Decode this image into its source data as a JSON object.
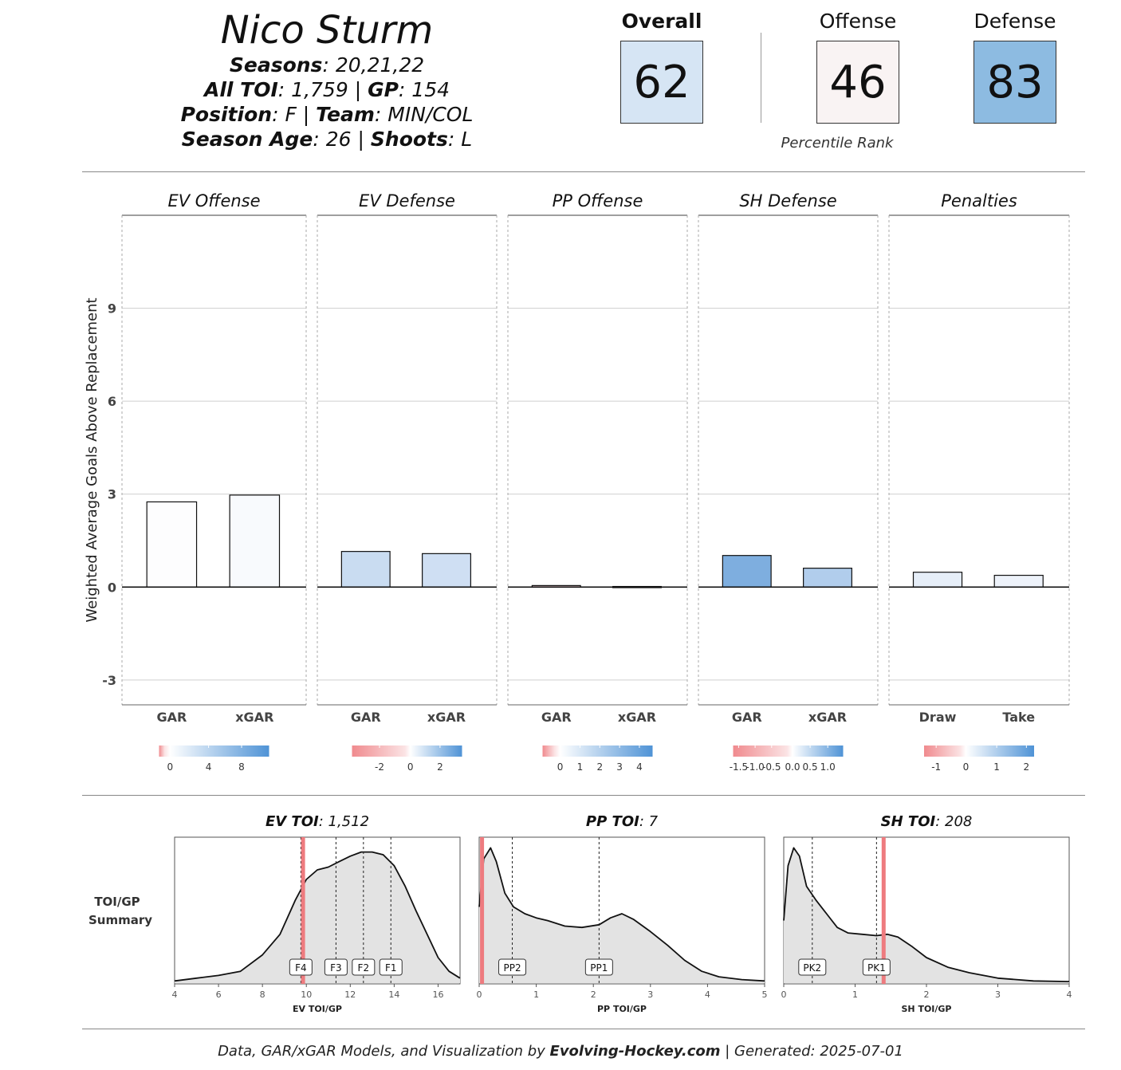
{
  "player": {
    "name": "Nico Sturm",
    "seasons_label": "Seasons",
    "seasons": "20,21,22",
    "toi_label": "All TOI",
    "toi": "1,759",
    "gp_label": "GP",
    "gp": "154",
    "position_label": "Position",
    "position": "F",
    "team_label": "Team",
    "team": "MIN/COL",
    "age_label": "Season Age",
    "age": "26",
    "shoots_label": "Shoots",
    "shoots": "L"
  },
  "ratings": {
    "overall": {
      "label": "Overall",
      "value": "62",
      "color": "#d6e5f4"
    },
    "offense": {
      "label": "Offense",
      "value": "46",
      "color": "#f9f3f3"
    },
    "defense": {
      "label": "Defense",
      "value": "83",
      "color": "#8dbbe1"
    },
    "percentile_label": "Percentile Rank"
  },
  "chart_data": [
    {
      "type": "bar",
      "ylabel": "Weighted Average Goals Above Replacement",
      "ylim": [
        -3.8,
        12.0
      ],
      "yticks": [
        -3,
        0,
        3,
        6,
        9
      ],
      "panels": [
        {
          "title": "EV Offense",
          "categories": [
            "GAR",
            "xGAR"
          ],
          "values": [
            2.75,
            2.97
          ],
          "colors": [
            "#fdfdfe",
            "#f8fafd"
          ],
          "legend": {
            "ticks": [
              "0",
              "4",
              "8"
            ],
            "stops": [
              0.1,
              0.45,
              0.75
            ]
          }
        },
        {
          "title": "EV Defense",
          "categories": [
            "GAR",
            "xGAR"
          ],
          "values": [
            1.15,
            1.08
          ],
          "colors": [
            "#c9dcf1",
            "#cfdff3"
          ],
          "legend": {
            "ticks": [
              "-2",
              "0",
              "2"
            ],
            "stops": [
              0.25,
              0.53,
              0.8
            ]
          }
        },
        {
          "title": "PP Offense",
          "categories": [
            "GAR",
            "xGAR"
          ],
          "values": [
            0.05,
            0.02
          ],
          "colors": [
            "#f6d7da",
            "#e6eef8"
          ],
          "legend": {
            "ticks": [
              "0",
              "1",
              "2",
              "3",
              "4"
            ],
            "stops": [
              0.16,
              0.34,
              0.52,
              0.7,
              0.88
            ]
          }
        },
        {
          "title": "SH Defense",
          "categories": [
            "GAR",
            "xGAR"
          ],
          "values": [
            1.02,
            0.61
          ],
          "colors": [
            "#7eaedf",
            "#b1cdec"
          ],
          "legend": {
            "ticks": [
              "-1.5",
              "-1.0",
              "-0.5",
              "0.0",
              "0.5",
              "1.0"
            ],
            "stops": [
              0.05,
              0.2,
              0.35,
              0.54,
              0.7,
              0.86
            ]
          }
        },
        {
          "title": "Penalties",
          "categories": [
            "Draw",
            "Take"
          ],
          "values": [
            0.48,
            0.38
          ],
          "colors": [
            "#e6eef8",
            "#edf2fa"
          ],
          "legend": {
            "ticks": [
              "-1",
              "0",
              "1",
              "2"
            ],
            "stops": [
              0.11,
              0.38,
              0.66,
              0.93
            ]
          }
        }
      ]
    },
    {
      "type": "area",
      "row_label": [
        "TOI/GP",
        "Summary"
      ],
      "panels": [
        {
          "title_label": "EV TOI",
          "title_value": "1,512",
          "xlabel": "EV TOI/GP",
          "xlim": [
            4,
            17
          ],
          "xticks": [
            4,
            6,
            8,
            10,
            12,
            14,
            16
          ],
          "player_value": 9.85,
          "markers": [
            {
              "label": "F4",
              "x": 9.75
            },
            {
              "label": "F3",
              "x": 11.35
            },
            {
              "label": "F2",
              "x": 12.6
            },
            {
              "label": "F1",
              "x": 13.85
            }
          ],
          "density": [
            [
              4,
              0.01
            ],
            [
              5,
              0.03
            ],
            [
              6,
              0.05
            ],
            [
              7,
              0.08
            ],
            [
              8,
              0.2
            ],
            [
              8.8,
              0.35
            ],
            [
              9.5,
              0.6
            ],
            [
              10,
              0.75
            ],
            [
              10.5,
              0.82
            ],
            [
              11,
              0.84
            ],
            [
              11.5,
              0.88
            ],
            [
              12,
              0.92
            ],
            [
              12.5,
              0.95
            ],
            [
              13,
              0.95
            ],
            [
              13.5,
              0.93
            ],
            [
              14,
              0.85
            ],
            [
              14.5,
              0.7
            ],
            [
              15,
              0.52
            ],
            [
              15.5,
              0.35
            ],
            [
              16,
              0.18
            ],
            [
              16.5,
              0.08
            ],
            [
              17,
              0.03
            ]
          ]
        },
        {
          "title_label": "PP TOI",
          "title_value": "7",
          "xlabel": "PP TOI/GP",
          "xlim": [
            0,
            5
          ],
          "xticks": [
            0,
            1,
            2,
            3,
            4,
            5
          ],
          "player_value": 0.05,
          "markers": [
            {
              "label": "PP2",
              "x": 0.58
            },
            {
              "label": "PP1",
              "x": 2.1
            }
          ],
          "density": [
            [
              0,
              0.55
            ],
            [
              0.08,
              0.9
            ],
            [
              0.2,
              0.98
            ],
            [
              0.3,
              0.88
            ],
            [
              0.45,
              0.65
            ],
            [
              0.6,
              0.55
            ],
            [
              0.8,
              0.5
            ],
            [
              1.0,
              0.47
            ],
            [
              1.2,
              0.45
            ],
            [
              1.5,
              0.41
            ],
            [
              1.8,
              0.4
            ],
            [
              2.1,
              0.42
            ],
            [
              2.3,
              0.47
            ],
            [
              2.5,
              0.5
            ],
            [
              2.7,
              0.46
            ],
            [
              3.0,
              0.37
            ],
            [
              3.3,
              0.27
            ],
            [
              3.6,
              0.16
            ],
            [
              3.9,
              0.08
            ],
            [
              4.2,
              0.04
            ],
            [
              4.6,
              0.02
            ],
            [
              5.0,
              0.01
            ]
          ]
        },
        {
          "title_label": "SH TOI",
          "title_value": "208",
          "xlabel": "SH TOI/GP",
          "xlim": [
            0,
            4
          ],
          "xticks": [
            0,
            1,
            2,
            3,
            4
          ],
          "player_value": 1.4,
          "markers": [
            {
              "label": "PK2",
              "x": 0.4
            },
            {
              "label": "PK1",
              "x": 1.3
            }
          ],
          "density": [
            [
              0,
              0.45
            ],
            [
              0.06,
              0.85
            ],
            [
              0.14,
              0.98
            ],
            [
              0.22,
              0.92
            ],
            [
              0.32,
              0.7
            ],
            [
              0.45,
              0.6
            ],
            [
              0.6,
              0.5
            ],
            [
              0.75,
              0.4
            ],
            [
              0.9,
              0.36
            ],
            [
              1.1,
              0.35
            ],
            [
              1.3,
              0.34
            ],
            [
              1.45,
              0.35
            ],
            [
              1.6,
              0.33
            ],
            [
              1.8,
              0.26
            ],
            [
              2.0,
              0.18
            ],
            [
              2.3,
              0.11
            ],
            [
              2.6,
              0.07
            ],
            [
              3.0,
              0.03
            ],
            [
              3.5,
              0.01
            ],
            [
              4.0,
              0.005
            ]
          ]
        }
      ]
    }
  ],
  "footer": {
    "prefix": "Data, GAR/xGAR Models, and Visualization by ",
    "brand": "Evolving-Hockey.com",
    "suffix": " | Generated: 2025-07-01"
  }
}
